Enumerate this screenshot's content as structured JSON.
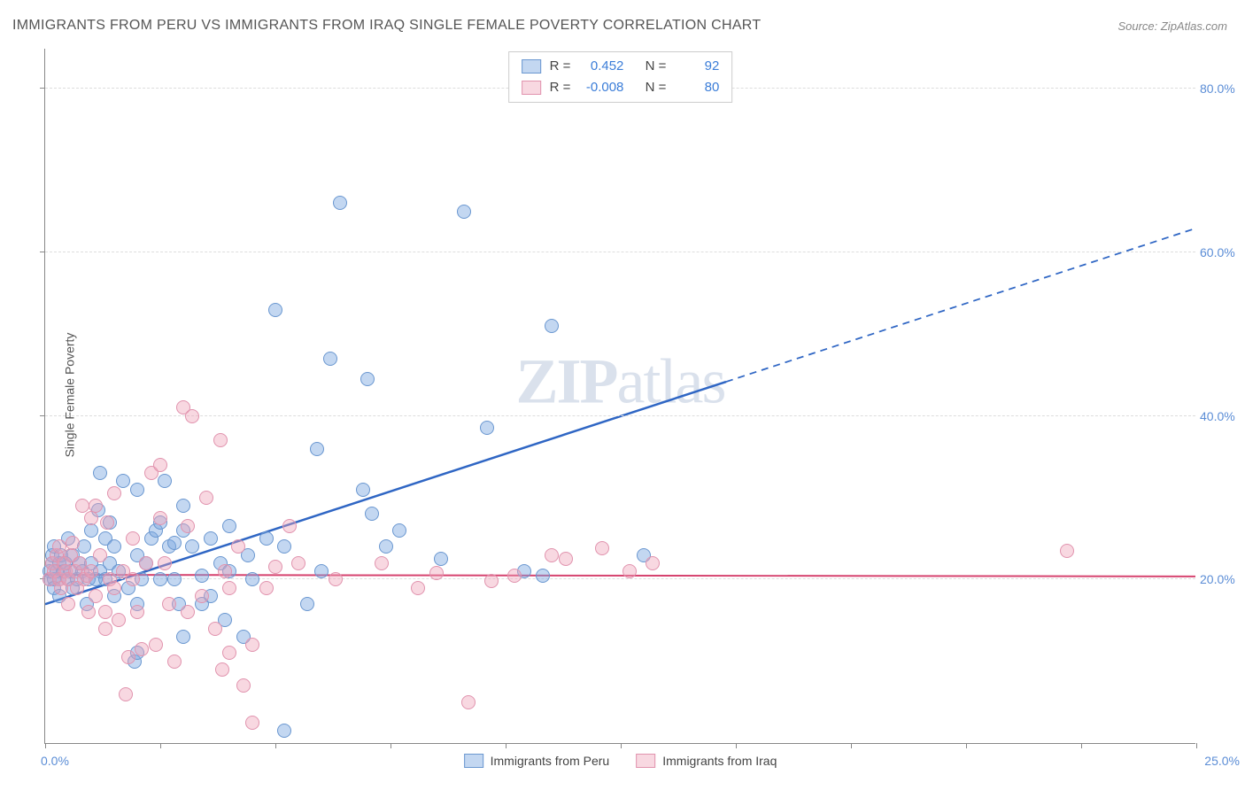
{
  "title": "IMMIGRANTS FROM PERU VS IMMIGRANTS FROM IRAQ SINGLE FEMALE POVERTY CORRELATION CHART",
  "source_prefix": "Source: ",
  "source_name": "ZipAtlas.com",
  "y_axis_label": "Single Female Poverty",
  "watermark_bold": "ZIP",
  "watermark_rest": "atlas",
  "chart": {
    "type": "scatter",
    "xlim": [
      0,
      25
    ],
    "ylim": [
      0,
      85
    ],
    "x_tick_step": 2.5,
    "x_min_label": "0.0%",
    "x_max_label": "25.0%",
    "y_ticks": [
      20,
      40,
      60,
      80
    ],
    "y_tick_labels": [
      "20.0%",
      "40.0%",
      "60.0%",
      "80.0%"
    ],
    "grid_color": "#dddddd",
    "background_color": "#ffffff",
    "axis_color": "#888888",
    "tick_label_color": "#5b8dd6",
    "title_color": "#555555",
    "title_fontsize": 16,
    "label_fontsize": 14,
    "point_radius": 8,
    "series": [
      {
        "name": "Immigrants from Peru",
        "fill": "rgba(123,167,224,0.45)",
        "stroke": "#6a97d0",
        "r_label": "R =",
        "r_value": "0.452",
        "n_label": "N =",
        "n_value": "92",
        "trend": {
          "stroke": "#2f66c4",
          "width": 2.5,
          "y_at_x0": 17,
          "y_at_x25": 63,
          "solid_until_x": 14.8
        },
        "points": [
          [
            0.1,
            20
          ],
          [
            0.1,
            21
          ],
          [
            0.15,
            22
          ],
          [
            0.15,
            23
          ],
          [
            0.2,
            24
          ],
          [
            0.2,
            20
          ],
          [
            0.2,
            19
          ],
          [
            0.25,
            21
          ],
          [
            0.3,
            22
          ],
          [
            0.3,
            20
          ],
          [
            0.3,
            18
          ],
          [
            0.35,
            23
          ],
          [
            0.4,
            21
          ],
          [
            0.45,
            22
          ],
          [
            0.5,
            20
          ],
          [
            0.5,
            25
          ],
          [
            0.55,
            21
          ],
          [
            0.6,
            23
          ],
          [
            0.6,
            19
          ],
          [
            0.7,
            20
          ],
          [
            0.75,
            22
          ],
          [
            0.8,
            21
          ],
          [
            0.85,
            24
          ],
          [
            0.9,
            17
          ],
          [
            0.95,
            20
          ],
          [
            1.0,
            22
          ],
          [
            1.0,
            26
          ],
          [
            1.1,
            20
          ],
          [
            1.15,
            28.5
          ],
          [
            1.2,
            33
          ],
          [
            1.2,
            21
          ],
          [
            1.3,
            20
          ],
          [
            1.3,
            25
          ],
          [
            1.4,
            22
          ],
          [
            1.4,
            27
          ],
          [
            1.5,
            18
          ],
          [
            1.5,
            24
          ],
          [
            1.6,
            21
          ],
          [
            1.7,
            32
          ],
          [
            1.8,
            19
          ],
          [
            1.95,
            10
          ],
          [
            2.0,
            11
          ],
          [
            2.0,
            17
          ],
          [
            2.0,
            31
          ],
          [
            2.0,
            23
          ],
          [
            2.1,
            20
          ],
          [
            2.2,
            22
          ],
          [
            2.3,
            25
          ],
          [
            2.4,
            26
          ],
          [
            2.5,
            27
          ],
          [
            2.5,
            20
          ],
          [
            2.6,
            32
          ],
          [
            2.7,
            24
          ],
          [
            2.8,
            20
          ],
          [
            2.8,
            24.5
          ],
          [
            2.9,
            17
          ],
          [
            3.0,
            13
          ],
          [
            3.0,
            26
          ],
          [
            3.0,
            29
          ],
          [
            3.2,
            24
          ],
          [
            3.4,
            17
          ],
          [
            3.4,
            20.5
          ],
          [
            3.6,
            18
          ],
          [
            3.6,
            25
          ],
          [
            3.8,
            22
          ],
          [
            3.9,
            15
          ],
          [
            4.0,
            26.5
          ],
          [
            4.0,
            21
          ],
          [
            4.3,
            13
          ],
          [
            4.4,
            23
          ],
          [
            4.5,
            20
          ],
          [
            4.8,
            25
          ],
          [
            5.0,
            53
          ],
          [
            5.2,
            1.5
          ],
          [
            5.2,
            24
          ],
          [
            5.7,
            17
          ],
          [
            5.9,
            36
          ],
          [
            6.0,
            21
          ],
          [
            6.2,
            47
          ],
          [
            6.4,
            66
          ],
          [
            6.9,
            31
          ],
          [
            7.0,
            44.5
          ],
          [
            7.1,
            28
          ],
          [
            7.4,
            24
          ],
          [
            7.7,
            26
          ],
          [
            8.6,
            22.5
          ],
          [
            9.1,
            65
          ],
          [
            9.6,
            38.5
          ],
          [
            10.4,
            21
          ],
          [
            10.8,
            20.5
          ],
          [
            11.0,
            51
          ],
          [
            13.0,
            23
          ]
        ]
      },
      {
        "name": "Immigrants from Iraq",
        "fill": "rgba(238,161,184,0.42)",
        "stroke": "#e193ae",
        "r_label": "R =",
        "r_value": "-0.008",
        "n_label": "N =",
        "n_value": "80",
        "trend": {
          "stroke": "#d6436f",
          "width": 2,
          "y_at_x0": 20.6,
          "y_at_x25": 20.4,
          "solid_until_x": 25
        },
        "points": [
          [
            0.1,
            20
          ],
          [
            0.15,
            22
          ],
          [
            0.2,
            21
          ],
          [
            0.25,
            23
          ],
          [
            0.3,
            20
          ],
          [
            0.3,
            24
          ],
          [
            0.35,
            19
          ],
          [
            0.4,
            22
          ],
          [
            0.45,
            21
          ],
          [
            0.5,
            20
          ],
          [
            0.5,
            17
          ],
          [
            0.55,
            23
          ],
          [
            0.6,
            24.5
          ],
          [
            0.65,
            21
          ],
          [
            0.7,
            19
          ],
          [
            0.75,
            22
          ],
          [
            0.8,
            29
          ],
          [
            0.85,
            20
          ],
          [
            0.9,
            20.5
          ],
          [
            0.95,
            16
          ],
          [
            1.0,
            21
          ],
          [
            1.0,
            27.5
          ],
          [
            1.1,
            18
          ],
          [
            1.1,
            29
          ],
          [
            1.2,
            23
          ],
          [
            1.3,
            16
          ],
          [
            1.3,
            14
          ],
          [
            1.35,
            27
          ],
          [
            1.4,
            20
          ],
          [
            1.5,
            19
          ],
          [
            1.5,
            30.5
          ],
          [
            1.6,
            15
          ],
          [
            1.7,
            21
          ],
          [
            1.75,
            6
          ],
          [
            1.8,
            10.5
          ],
          [
            1.9,
            20
          ],
          [
            1.9,
            25
          ],
          [
            2.0,
            16
          ],
          [
            2.1,
            11.5
          ],
          [
            2.2,
            22
          ],
          [
            2.3,
            33
          ],
          [
            2.4,
            12
          ],
          [
            2.5,
            34
          ],
          [
            2.5,
            27.5
          ],
          [
            2.6,
            22
          ],
          [
            2.7,
            17
          ],
          [
            2.8,
            10
          ],
          [
            3.0,
            41
          ],
          [
            3.1,
            26.5
          ],
          [
            3.1,
            16
          ],
          [
            3.2,
            40
          ],
          [
            3.4,
            18
          ],
          [
            3.5,
            30
          ],
          [
            3.7,
            14
          ],
          [
            3.8,
            37
          ],
          [
            3.85,
            9
          ],
          [
            3.9,
            21
          ],
          [
            4.0,
            19
          ],
          [
            4.0,
            11
          ],
          [
            4.2,
            24
          ],
          [
            4.3,
            7
          ],
          [
            4.5,
            12
          ],
          [
            4.5,
            2.5
          ],
          [
            4.8,
            19
          ],
          [
            5.0,
            21.5
          ],
          [
            5.3,
            26.5
          ],
          [
            5.5,
            22
          ],
          [
            6.3,
            20
          ],
          [
            7.3,
            22
          ],
          [
            8.1,
            19
          ],
          [
            8.5,
            20.8
          ],
          [
            9.2,
            5
          ],
          [
            9.7,
            19.8
          ],
          [
            10.2,
            20.5
          ],
          [
            11.0,
            23
          ],
          [
            11.3,
            22.5
          ],
          [
            12.1,
            23.8
          ],
          [
            12.7,
            21
          ],
          [
            13.2,
            22
          ],
          [
            22.2,
            23.5
          ]
        ]
      }
    ]
  }
}
